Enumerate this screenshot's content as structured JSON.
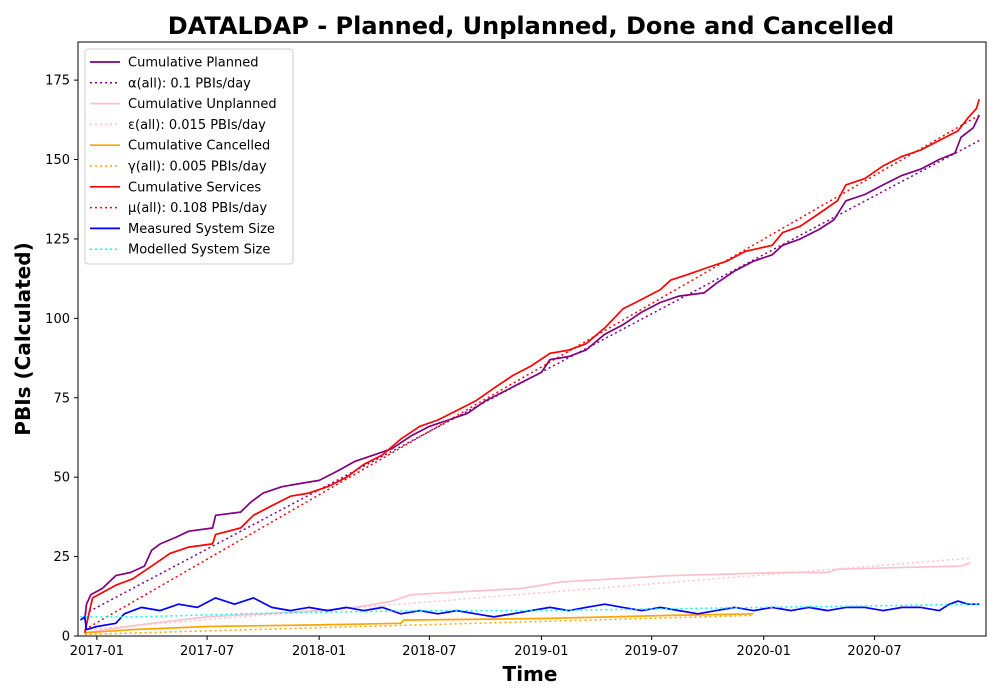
{
  "chart_data": {
    "type": "line",
    "title": "DATALDAP - Planned, Unplanned, Done  and Cancelled",
    "xlabel": "Time",
    "ylabel": "PBIs (Calculated)",
    "xlim": [
      "2016-12-01",
      "2020-12-31"
    ],
    "ylim": [
      0,
      187
    ],
    "x_ticks": [
      "2017-01",
      "2017-07",
      "2018-01",
      "2018-07",
      "2019-01",
      "2019-07",
      "2020-01",
      "2020-07"
    ],
    "y_ticks": [
      0,
      25,
      50,
      75,
      100,
      125,
      150,
      175
    ],
    "grid": false,
    "legend_position": "top-left",
    "series": [
      {
        "name": "Cumulative Planned",
        "color": "#800080",
        "style": "solid",
        "points": [
          [
            "2016-12-12",
            5
          ],
          [
            "2016-12-15",
            10
          ],
          [
            "2016-12-22",
            13
          ],
          [
            "2017-01-10",
            15
          ],
          [
            "2017-02-01",
            19
          ],
          [
            "2017-02-25",
            20
          ],
          [
            "2017-03-20",
            22
          ],
          [
            "2017-04-01",
            27
          ],
          [
            "2017-04-15",
            29
          ],
          [
            "2017-05-10",
            31
          ],
          [
            "2017-06-01",
            33
          ],
          [
            "2017-07-10",
            34
          ],
          [
            "2017-07-15",
            38
          ],
          [
            "2017-08-25",
            39
          ],
          [
            "2017-09-10",
            42
          ],
          [
            "2017-10-01",
            45
          ],
          [
            "2017-11-01",
            47
          ],
          [
            "2017-12-01",
            48
          ],
          [
            "2018-01-01",
            49
          ],
          [
            "2018-02-01",
            52
          ],
          [
            "2018-03-01",
            55
          ],
          [
            "2018-04-01",
            57
          ],
          [
            "2018-05-01",
            59
          ],
          [
            "2018-06-01",
            63
          ],
          [
            "2018-07-01",
            66
          ],
          [
            "2018-08-01",
            68
          ],
          [
            "2018-09-01",
            70
          ],
          [
            "2018-10-01",
            74
          ],
          [
            "2018-11-01",
            77
          ],
          [
            "2018-12-01",
            80
          ],
          [
            "2019-01-01",
            83
          ],
          [
            "2019-01-15",
            87
          ],
          [
            "2019-02-15",
            88
          ],
          [
            "2019-03-15",
            90
          ],
          [
            "2019-04-15",
            95
          ],
          [
            "2019-05-15",
            98
          ],
          [
            "2019-06-15",
            102
          ],
          [
            "2019-07-15",
            105
          ],
          [
            "2019-08-15",
            107
          ],
          [
            "2019-09-25",
            108
          ],
          [
            "2019-10-15",
            111
          ],
          [
            "2019-11-15",
            115
          ],
          [
            "2019-12-15",
            118
          ],
          [
            "2020-01-15",
            120
          ],
          [
            "2020-02-01",
            123
          ],
          [
            "2020-03-01",
            125
          ],
          [
            "2020-04-01",
            128
          ],
          [
            "2020-04-25",
            131
          ],
          [
            "2020-05-15",
            137
          ],
          [
            "2020-06-15",
            139
          ],
          [
            "2020-07-15",
            142
          ],
          [
            "2020-08-15",
            145
          ],
          [
            "2020-09-15",
            147
          ],
          [
            "2020-10-15",
            150
          ],
          [
            "2020-11-10",
            152
          ],
          [
            "2020-11-20",
            157
          ],
          [
            "2020-12-10",
            160
          ],
          [
            "2020-12-20",
            164
          ]
        ]
      },
      {
        "name": "α(all): 0.1 PBIs/day",
        "color": "#800080",
        "style": "dotted",
        "points": [
          [
            "2016-12-12",
            7
          ],
          [
            "2020-12-20",
            156
          ]
        ]
      },
      {
        "name": "Cumulative Unplanned",
        "color": "#ffc0cb",
        "style": "solid",
        "points": [
          [
            "2016-12-12",
            1
          ],
          [
            "2017-01-15",
            2
          ],
          [
            "2017-04-01",
            4
          ],
          [
            "2017-07-01",
            6
          ],
          [
            "2017-10-01",
            7
          ],
          [
            "2018-01-01",
            8
          ],
          [
            "2018-03-01",
            9
          ],
          [
            "2018-05-01",
            11
          ],
          [
            "2018-06-01",
            13
          ],
          [
            "2018-09-01",
            14
          ],
          [
            "2018-12-01",
            15
          ],
          [
            "2019-02-01",
            17
          ],
          [
            "2019-05-01",
            18
          ],
          [
            "2019-08-01",
            19
          ],
          [
            "2019-11-01",
            19.5
          ],
          [
            "2020-02-01",
            20
          ],
          [
            "2020-04-15",
            20
          ],
          [
            "2020-05-01",
            21
          ],
          [
            "2020-08-01",
            21.5
          ],
          [
            "2020-11-20",
            22
          ],
          [
            "2020-12-05",
            23
          ]
        ]
      },
      {
        "name": "ε(all): 0.015 PBIs/day",
        "color": "#ffc0cb",
        "style": "dotted",
        "points": [
          [
            "2016-12-12",
            2
          ],
          [
            "2020-12-05",
            24.5
          ]
        ]
      },
      {
        "name": "Cumulative Cancelled",
        "color": "#ffa500",
        "style": "solid",
        "points": [
          [
            "2016-12-12",
            1
          ],
          [
            "2017-03-01",
            2
          ],
          [
            "2017-07-01",
            3
          ],
          [
            "2018-01-01",
            3.5
          ],
          [
            "2018-05-15",
            4
          ],
          [
            "2018-05-20",
            5
          ],
          [
            "2019-01-01",
            5.5
          ],
          [
            "2019-08-01",
            6.5
          ],
          [
            "2019-12-15",
            7
          ]
        ]
      },
      {
        "name": "γ(all): 0.005 PBIs/day",
        "color": "#ffa500",
        "style": "dotted",
        "points": [
          [
            "2016-12-12",
            0.5
          ],
          [
            "2019-12-15",
            6.5
          ]
        ]
      },
      {
        "name": "Cumulative Services",
        "color": "#ff0000",
        "style": "solid",
        "points": [
          [
            "2016-12-12",
            1
          ],
          [
            "2016-12-20",
            8
          ],
          [
            "2016-12-25",
            12
          ],
          [
            "2017-02-01",
            16
          ],
          [
            "2017-03-01",
            18
          ],
          [
            "2017-04-01",
            22
          ],
          [
            "2017-05-01",
            26
          ],
          [
            "2017-06-01",
            28
          ],
          [
            "2017-07-10",
            29
          ],
          [
            "2017-07-15",
            32
          ],
          [
            "2017-08-25",
            34
          ],
          [
            "2017-09-15",
            38
          ],
          [
            "2017-10-15",
            41
          ],
          [
            "2017-11-15",
            44
          ],
          [
            "2017-12-15",
            45
          ],
          [
            "2018-01-15",
            47
          ],
          [
            "2018-02-15",
            50
          ],
          [
            "2018-03-15",
            54
          ],
          [
            "2018-04-15",
            57
          ],
          [
            "2018-05-15",
            62
          ],
          [
            "2018-06-15",
            66
          ],
          [
            "2018-07-15",
            68
          ],
          [
            "2018-08-15",
            71
          ],
          [
            "2018-09-15",
            74
          ],
          [
            "2018-10-15",
            78
          ],
          [
            "2018-11-15",
            82
          ],
          [
            "2018-12-15",
            85
          ],
          [
            "2019-01-15",
            89
          ],
          [
            "2019-02-15",
            90
          ],
          [
            "2019-03-15",
            92
          ],
          [
            "2019-04-15",
            97
          ],
          [
            "2019-05-15",
            103
          ],
          [
            "2019-06-15",
            106
          ],
          [
            "2019-07-15",
            109
          ],
          [
            "2019-08-01",
            112
          ],
          [
            "2019-09-01",
            114
          ],
          [
            "2019-10-01",
            116
          ],
          [
            "2019-11-01",
            118
          ],
          [
            "2019-12-01",
            121
          ],
          [
            "2020-01-15",
            123
          ],
          [
            "2020-02-01",
            127
          ],
          [
            "2020-03-01",
            129
          ],
          [
            "2020-04-01",
            133
          ],
          [
            "2020-05-01",
            137
          ],
          [
            "2020-05-15",
            142
          ],
          [
            "2020-06-15",
            144
          ],
          [
            "2020-07-15",
            148
          ],
          [
            "2020-08-15",
            151
          ],
          [
            "2020-09-15",
            153
          ],
          [
            "2020-10-15",
            156
          ],
          [
            "2020-11-15",
            159
          ],
          [
            "2020-12-01",
            163
          ],
          [
            "2020-12-15",
            166
          ],
          [
            "2020-12-20",
            169
          ]
        ]
      },
      {
        "name": "μ(all): 0.108 PBIs/day",
        "color": "#ff0000",
        "style": "dotted",
        "points": [
          [
            "2016-12-12",
            2
          ],
          [
            "2020-12-20",
            164
          ]
        ]
      },
      {
        "name": "Measured System Size",
        "color": "#0000ff",
        "style": "solid",
        "points": [
          [
            "2016-12-05",
            5
          ],
          [
            "2016-12-12",
            6
          ],
          [
            "2016-12-15",
            2
          ],
          [
            "2017-01-01",
            3
          ],
          [
            "2017-02-01",
            4
          ],
          [
            "2017-02-15",
            7
          ],
          [
            "2017-03-15",
            9
          ],
          [
            "2017-04-15",
            8
          ],
          [
            "2017-05-15",
            10
          ],
          [
            "2017-06-15",
            9
          ],
          [
            "2017-07-15",
            12
          ],
          [
            "2017-08-15",
            10
          ],
          [
            "2017-09-15",
            12
          ],
          [
            "2017-10-15",
            9
          ],
          [
            "2017-11-15",
            8
          ],
          [
            "2017-12-15",
            9
          ],
          [
            "2018-01-15",
            8
          ],
          [
            "2018-02-15",
            9
          ],
          [
            "2018-03-15",
            8
          ],
          [
            "2018-04-15",
            9
          ],
          [
            "2018-05-15",
            7
          ],
          [
            "2018-06-15",
            8
          ],
          [
            "2018-07-15",
            7
          ],
          [
            "2018-08-15",
            8
          ],
          [
            "2018-09-15",
            7
          ],
          [
            "2018-10-15",
            6
          ],
          [
            "2018-11-15",
            7
          ],
          [
            "2018-12-15",
            8
          ],
          [
            "2019-01-15",
            9
          ],
          [
            "2019-02-15",
            8
          ],
          [
            "2019-03-15",
            9
          ],
          [
            "2019-04-15",
            10
          ],
          [
            "2019-05-15",
            9
          ],
          [
            "2019-06-15",
            8
          ],
          [
            "2019-07-15",
            9
          ],
          [
            "2019-08-15",
            8
          ],
          [
            "2019-09-15",
            7
          ],
          [
            "2019-10-15",
            8
          ],
          [
            "2019-11-15",
            9
          ],
          [
            "2019-12-15",
            8
          ],
          [
            "2020-01-15",
            9
          ],
          [
            "2020-02-15",
            8
          ],
          [
            "2020-03-15",
            9
          ],
          [
            "2020-04-15",
            8
          ],
          [
            "2020-05-15",
            9
          ],
          [
            "2020-06-15",
            9
          ],
          [
            "2020-07-15",
            8
          ],
          [
            "2020-08-15",
            9
          ],
          [
            "2020-09-15",
            9
          ],
          [
            "2020-10-15",
            8
          ],
          [
            "2020-11-01",
            10
          ],
          [
            "2020-11-15",
            11
          ],
          [
            "2020-12-01",
            10
          ],
          [
            "2020-12-20",
            10
          ]
        ]
      },
      {
        "name": "Modelled System Size",
        "color": "#00ffff",
        "style": "dotted",
        "points": [
          [
            "2016-12-05",
            6
          ],
          [
            "2017-03-01",
            6
          ],
          [
            "2017-06-01",
            6.5
          ],
          [
            "2017-09-01",
            7
          ],
          [
            "2018-01-01",
            7.5
          ],
          [
            "2018-07-01",
            8
          ],
          [
            "2019-01-01",
            8
          ],
          [
            "2019-07-01",
            8.5
          ],
          [
            "2020-01-01",
            9
          ],
          [
            "2020-07-01",
            9.5
          ],
          [
            "2020-12-20",
            10
          ]
        ]
      }
    ]
  }
}
